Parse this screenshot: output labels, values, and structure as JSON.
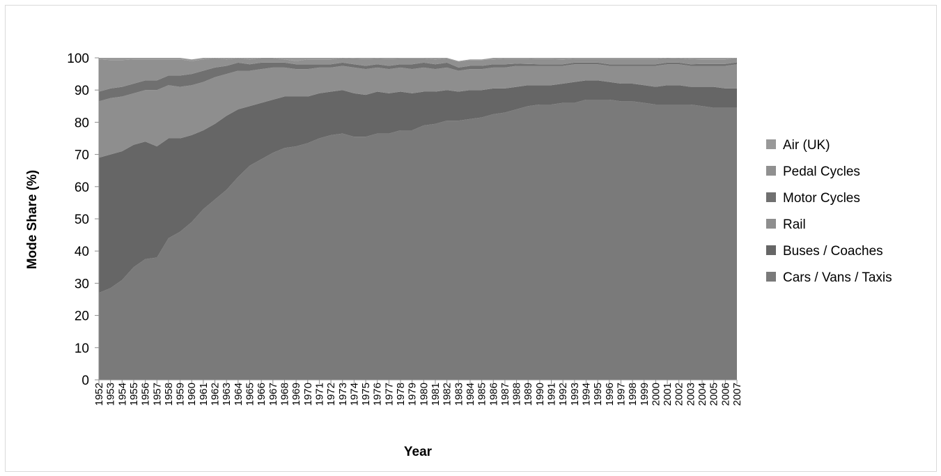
{
  "chart_data": {
    "type": "area",
    "stacked": true,
    "title": "",
    "xlabel": "Year",
    "ylabel": "Mode Share (%)",
    "ylim": [
      0,
      100
    ],
    "yticks": [
      0,
      10,
      20,
      30,
      40,
      50,
      60,
      70,
      80,
      90,
      100
    ],
    "grid": false,
    "legend_position": "right",
    "x": [
      1952,
      1953,
      1954,
      1955,
      1956,
      1957,
      1958,
      1959,
      1960,
      1961,
      1962,
      1963,
      1964,
      1965,
      1966,
      1967,
      1968,
      1969,
      1970,
      1971,
      1972,
      1973,
      1974,
      1975,
      1976,
      1977,
      1978,
      1979,
      1980,
      1981,
      1982,
      1983,
      1984,
      1985,
      1986,
      1987,
      1988,
      1989,
      1990,
      1991,
      1992,
      1993,
      1994,
      1995,
      1996,
      1997,
      1998,
      1999,
      2000,
      2001,
      2002,
      2003,
      2004,
      2005,
      2006,
      2007
    ],
    "series": [
      {
        "name": "Cars / Vans / Taxis",
        "color": "#7a7a7a",
        "values": [
          27,
          28.5,
          31,
          35,
          37.5,
          38,
          44,
          46,
          49,
          53,
          56,
          59,
          63,
          66.5,
          68.5,
          70.5,
          72,
          72.5,
          73.5,
          75,
          76,
          76.5,
          75.5,
          75.5,
          76.5,
          76.5,
          77.5,
          77.5,
          79,
          79.5,
          80.5,
          80.5,
          81,
          81.5,
          82.5,
          83,
          84,
          85,
          85.5,
          85.5,
          86,
          86,
          87,
          87,
          87,
          86.5,
          86.5,
          86,
          85.5,
          85.5,
          85.5,
          85.5,
          85,
          84.5,
          84.5,
          84.5
        ]
      },
      {
        "name": "Buses / Coaches",
        "color": "#666666",
        "values": [
          42,
          41.5,
          40,
          38,
          36.5,
          34.5,
          31,
          29,
          27,
          24.5,
          23.5,
          23,
          21,
          18.5,
          17.5,
          16.5,
          16,
          15.5,
          14.5,
          14,
          13.5,
          13.5,
          13.5,
          13,
          13,
          12.5,
          12,
          11.5,
          10.5,
          10,
          9.5,
          9,
          9,
          8.5,
          8,
          7.5,
          7,
          6.5,
          6,
          6,
          6,
          6.5,
          6,
          6,
          5.5,
          5.5,
          5.5,
          5.5,
          5.5,
          6,
          6,
          5.5,
          6,
          6.5,
          6,
          6
        ]
      },
      {
        "name": "Rail",
        "color": "#8e8e8e",
        "values": [
          17.5,
          17.5,
          17,
          16,
          16,
          17.5,
          16.5,
          16,
          15.5,
          15,
          14.5,
          13,
          12,
          11,
          10.5,
          10,
          9,
          8.5,
          8.5,
          8,
          7.5,
          7.5,
          8,
          8,
          7.5,
          7.5,
          7.5,
          7.5,
          7.5,
          7,
          7,
          6.5,
          6.5,
          6.5,
          6.5,
          6.5,
          6.5,
          6,
          6,
          6,
          5.5,
          5.5,
          5,
          5,
          5,
          5.5,
          5.5,
          6,
          6.5,
          6.5,
          6.5,
          6.5,
          6.5,
          6.5,
          7,
          7.5
        ]
      },
      {
        "name": "Motor Cycles",
        "color": "#707070",
        "values": [
          3,
          3,
          3,
          3,
          3,
          3,
          3,
          3.5,
          3.5,
          3.5,
          3,
          2.5,
          2.5,
          2,
          2,
          1.5,
          1.5,
          1.5,
          1.5,
          1,
          1,
          1,
          1,
          1,
          1,
          1,
          1,
          1.5,
          1.5,
          1.5,
          1.5,
          1,
          1,
          1,
          1,
          1,
          0.7,
          0.6,
          0.5,
          0.5,
          0.5,
          0.5,
          0.5,
          0.5,
          0.5,
          0.5,
          0.5,
          0.5,
          0.5,
          0.5,
          0.5,
          0.5,
          0.6,
          0.6,
          0.6,
          0.6
        ]
      },
      {
        "name": "Pedal Cycles",
        "color": "#909090",
        "values": [
          10,
          8.8,
          8.3,
          7.5,
          6.5,
          6.5,
          5,
          5,
          4,
          3.5,
          3,
          2,
          1.5,
          1.5,
          1.5,
          1.5,
          1,
          1,
          1.5,
          1.5,
          1.5,
          1.5,
          1.8,
          2.2,
          1.8,
          2.2,
          1.8,
          1.8,
          1.3,
          1.5,
          1.3,
          1.8,
          1.8,
          1.8,
          1.5,
          1.7,
          1.5,
          1.6,
          1.6,
          1.6,
          1.5,
          1.2,
          1.2,
          1.2,
          1.7,
          1.7,
          1.7,
          1.7,
          1.7,
          1.5,
          1.4,
          1.6,
          1.4,
          1.4,
          1.4,
          1.4
        ]
      },
      {
        "name": "Air (UK)",
        "color": "#999999",
        "values": [
          0.5,
          0.7,
          0.7,
          0.5,
          0.5,
          0.5,
          0.5,
          0.5,
          0.5,
          0.5,
          0,
          0.5,
          0,
          0.5,
          0,
          0,
          0.5,
          1,
          0.5,
          0.5,
          0.5,
          0,
          0.2,
          0.3,
          0.2,
          0.3,
          0.2,
          0.2,
          0.2,
          0.5,
          0.2,
          0.2,
          0.2,
          0.2,
          0.5,
          0.3,
          0.3,
          0.3,
          0.4,
          0.4,
          0.5,
          0.3,
          0.3,
          0.3,
          0.3,
          0.3,
          0.3,
          0.3,
          0.3,
          0.5,
          0.6,
          0.4,
          0.5,
          0.5,
          0.5,
          0
        ]
      }
    ]
  }
}
